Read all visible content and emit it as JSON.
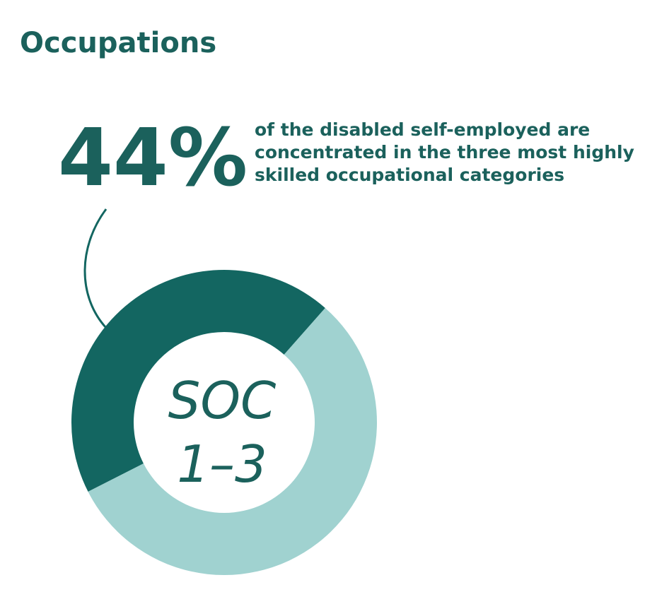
{
  "chart_data": {
    "type": "donut",
    "title": "Occupations",
    "value_labels": [
      "44%",
      null
    ],
    "description": [
      "of the disabled self-employed are",
      "concentrated in the three most highly",
      "skilled occupational categories"
    ],
    "center_label": [
      "SOC",
      "1–3"
    ],
    "values": [
      44,
      56
    ],
    "colors": [
      "#136661",
      "#a0d2d0"
    ]
  }
}
